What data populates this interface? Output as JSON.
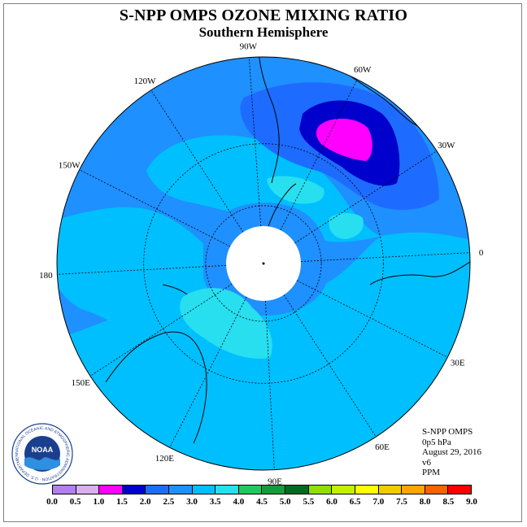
{
  "title": "S-NPP OMPS OZONE MIXING RATIO",
  "subtitle": "Southern Hemisphere",
  "longitude_labels": [
    "90W",
    "60W",
    "30W",
    "0",
    "30E",
    "60E",
    "90E",
    "120E",
    "150E",
    "180",
    "150W",
    "120W"
  ],
  "info": {
    "instrument": "S-NPP OMPS",
    "level": "0p5 hPa",
    "date": "August 29, 2016",
    "version": "v6",
    "units": "PPM"
  },
  "colorbar": {
    "ticks": [
      "0.0",
      "0.5",
      "1.0",
      "1.5",
      "2.0",
      "2.5",
      "3.0",
      "3.5",
      "4.0",
      "4.5",
      "5.0",
      "5.5",
      "6.0",
      "6.5",
      "7.0",
      "7.5",
      "8.0",
      "8.5",
      "9.0"
    ],
    "colors": [
      "#b37fef",
      "#d8b0f0",
      "#ff00ff",
      "#0000cd",
      "#1e6cff",
      "#1e90ff",
      "#00bfff",
      "#27dfef",
      "#22c85e",
      "#159c3a",
      "#006b1f",
      "#8fe000",
      "#c4f000",
      "#ffff00",
      "#f2cc00",
      "#ffa500",
      "#ff6000",
      "#ff0000",
      "#8b5a2b"
    ]
  },
  "logo": {
    "text": "NOAA",
    "ring_text": "NATIONAL OCEANIC AND ATMOSPHERIC ADMINISTRATION · U.S. DEPARTMENT OF COMMERCE"
  },
  "map_colors": {
    "land_outline": "#000000",
    "pole": "#ffffff",
    "band_2_0_2_5": "#1e6cff",
    "band_2_5_3_0": "#1e90ff",
    "band_3_0_3_5": "#00bfff",
    "band_3_5_4_0": "#27dfef",
    "band_1_5_2_0": "#0000cd",
    "band_1_0_1_5": "#ff00ff"
  }
}
